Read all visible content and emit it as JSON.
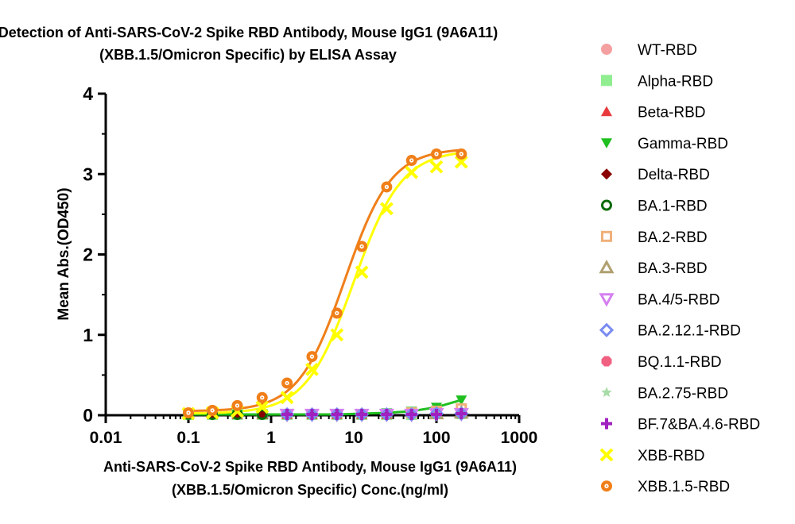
{
  "chart_data": {
    "type": "scatter",
    "title_lines": [
      "Detection of Anti-SARS-CoV-2 Spike RBD Antibody, Mouse IgG1 (9A6A11)",
      "(XBB.1.5/Omicron Specific) by ELISA Assay"
    ],
    "xlabel_lines": [
      "Anti-SARS-CoV-2 Spike RBD Antibody, Mouse IgG1 (9A6A11)",
      "(XBB.1.5/Omicron Specific) Conc.(ng/ml)"
    ],
    "ylabel": "Mean Abs.(OD450)",
    "x_scale": "log",
    "xlim": [
      0.01,
      1000
    ],
    "ylim": [
      0,
      4
    ],
    "x_ticks": [
      0.01,
      0.1,
      1,
      10,
      100,
      1000
    ],
    "x_tick_labels": [
      "0.01",
      "0.1",
      "1",
      "10",
      "100",
      "1000"
    ],
    "y_ticks": [
      0,
      1,
      2,
      3,
      4
    ],
    "y_tick_labels": [
      "0",
      "1",
      "2",
      "3",
      "4"
    ],
    "grid": false,
    "legend_position": "right",
    "series": [
      {
        "name": "WT-RBD",
        "color": "#f4a0a0",
        "marker": "circle",
        "x": [
          0.1,
          0.195,
          0.39,
          0.78,
          1.56,
          3.125,
          6.25,
          12.5,
          25,
          50,
          100,
          200
        ],
        "y": [
          0.01,
          0.01,
          0.01,
          0.01,
          0.01,
          0.01,
          0.01,
          0.01,
          0.01,
          0.01,
          0.02,
          0.02
        ],
        "curve": false
      },
      {
        "name": "Alpha-RBD",
        "color": "#90ee90",
        "marker": "square",
        "x": [
          0.1,
          0.195,
          0.39,
          0.78,
          1.56,
          3.125,
          6.25,
          12.5,
          25,
          50,
          100,
          200
        ],
        "y": [
          0.01,
          0.01,
          0.01,
          0.01,
          0.01,
          0.01,
          0.01,
          0.01,
          0.01,
          0.01,
          0.02,
          0.02
        ],
        "curve": false
      },
      {
        "name": "Beta-RBD",
        "color": "#e8393c",
        "marker": "triangle-up",
        "x": [
          0.1,
          0.195,
          0.39,
          0.78,
          1.56,
          3.125,
          6.25,
          12.5,
          25,
          50,
          100,
          200
        ],
        "y": [
          0.01,
          0.01,
          0.01,
          0.01,
          0.01,
          0.01,
          0.01,
          0.01,
          0.01,
          0.02,
          0.02,
          0.02
        ],
        "curve": false
      },
      {
        "name": "Gamma-RBD",
        "color": "#1fbf1f",
        "marker": "triangle-down",
        "x": [
          0.1,
          0.195,
          0.39,
          0.78,
          1.56,
          3.125,
          6.25,
          12.5,
          25,
          50,
          100,
          200
        ],
        "y": [
          0.01,
          0.01,
          0.01,
          0.01,
          0.01,
          0.01,
          0.01,
          0.02,
          0.03,
          0.05,
          0.1,
          0.19
        ],
        "curve": true
      },
      {
        "name": "Delta-RBD",
        "color": "#8b0000",
        "marker": "diamond",
        "x": [
          0.1,
          0.195,
          0.39,
          0.78,
          1.56,
          3.125,
          6.25,
          12.5,
          25,
          50,
          100,
          200
        ],
        "y": [
          0.01,
          0.01,
          0.01,
          0.01,
          0.01,
          0.01,
          0.01,
          0.01,
          0.01,
          0.01,
          0.02,
          0.02
        ],
        "curve": false
      },
      {
        "name": "BA.1-RBD",
        "color": "#0a6b0a",
        "marker": "ring",
        "x": [
          0.1,
          0.195,
          0.39,
          0.78
        ],
        "y": [
          0.01,
          0.01,
          0.01,
          0.01
        ],
        "curve": false
      },
      {
        "name": "BA.2-RBD",
        "color": "#f0b07a",
        "marker": "square-open",
        "x": [
          50,
          100,
          200
        ],
        "y": [
          0.03,
          0.05,
          0.08
        ],
        "curve": false
      },
      {
        "name": "BA.3-RBD",
        "color": "#b0a070",
        "marker": "triangle-open",
        "x": [
          100,
          200
        ],
        "y": [
          0.02,
          0.03
        ],
        "curve": false
      },
      {
        "name": "BA.4/5-RBD",
        "color": "#d580f0",
        "marker": "triangle-down-open",
        "x": [
          1.56,
          3.125,
          6.25,
          12.5,
          25,
          50,
          100,
          200
        ],
        "y": [
          0.01,
          0.01,
          0.01,
          0.01,
          0.01,
          0.01,
          0.02,
          0.02
        ],
        "curve": false
      },
      {
        "name": "BA.2.12.1-RBD",
        "color": "#7b8cf0",
        "marker": "diamond-open",
        "x": [
          1.56,
          3.125,
          6.25,
          12.5,
          25,
          50,
          100,
          200
        ],
        "y": [
          0.01,
          0.01,
          0.01,
          0.01,
          0.01,
          0.01,
          0.02,
          0.02
        ],
        "curve": false
      },
      {
        "name": "BQ.1.1-RBD",
        "color": "#f06080",
        "marker": "octagon",
        "x": [],
        "y": [],
        "curve": false
      },
      {
        "name": "BA.2.75-RBD",
        "color": "#a8dca8",
        "marker": "star",
        "x": [],
        "y": [],
        "curve": false
      },
      {
        "name": "BF.7&BA.4.6-RBD",
        "color": "#a020c0",
        "marker": "plus",
        "x": [
          1.56,
          3.125,
          6.25,
          12.5,
          25,
          50,
          100,
          200
        ],
        "y": [
          0.01,
          0.01,
          0.01,
          0.01,
          0.01,
          0.01,
          0.01,
          0.02
        ],
        "curve": false
      },
      {
        "name": "XBB-RBD",
        "color": "#ffff00",
        "marker": "x",
        "x": [
          0.1,
          0.195,
          0.39,
          0.78,
          1.56,
          3.125,
          6.25,
          12.5,
          25,
          50,
          100,
          200
        ],
        "y": [
          0.02,
          0.03,
          0.05,
          0.1,
          0.22,
          0.57,
          1.0,
          1.78,
          2.57,
          3.02,
          3.09,
          3.15
        ],
        "curve": true,
        "fit": {
          "bottom": 0.02,
          "top": 3.3,
          "ec50": 10.0,
          "hill": 1.5
        }
      },
      {
        "name": "XBB.1.5-RBD",
        "color": "#f07f1a",
        "marker": "ring-dot",
        "x": [
          0.1,
          0.195,
          0.39,
          0.78,
          1.56,
          3.125,
          6.25,
          12.5,
          25,
          50,
          100,
          200
        ],
        "y": [
          0.03,
          0.06,
          0.12,
          0.22,
          0.4,
          0.73,
          1.27,
          2.1,
          2.84,
          3.17,
          3.25,
          3.25
        ],
        "curve": true,
        "fit": {
          "bottom": 0.05,
          "top": 3.32,
          "ec50": 7.8,
          "hill": 1.55
        }
      }
    ]
  }
}
